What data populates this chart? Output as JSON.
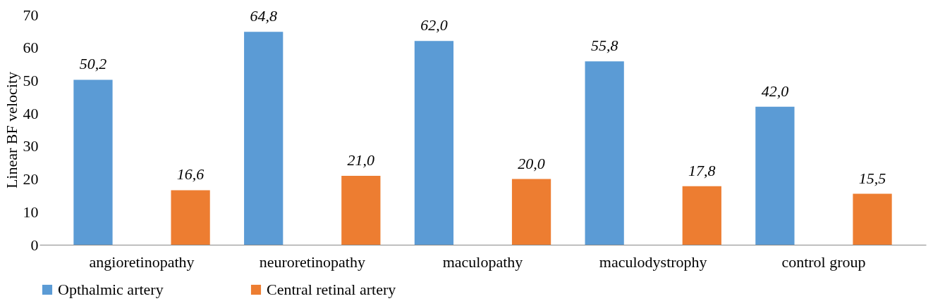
{
  "chart_data": {
    "type": "bar",
    "ylabel": "Linear BF velocity",
    "categories": [
      "angioretinopathy",
      "neuroretinopathy",
      "maculopathy",
      "maculodystrophy",
      "control group"
    ],
    "series": [
      {
        "name": "Opthalmic artery",
        "color": "#5b9bd5",
        "values": [
          50.2,
          64.8,
          62.0,
          55.8,
          42.0
        ],
        "value_labels": [
          "50,2",
          "64,8",
          "62,0",
          "55,8",
          "42,0"
        ]
      },
      {
        "name": "Central retinal artery",
        "color": "#ed7d31",
        "values": [
          16.6,
          21.0,
          20.0,
          17.8,
          15.5
        ],
        "value_labels": [
          "16,6",
          "21,0",
          "20,0",
          "17,8",
          "15,5"
        ]
      }
    ],
    "ylim": [
      0,
      70
    ],
    "yticks": [
      0,
      10,
      20,
      30,
      40,
      50,
      60,
      70
    ],
    "grid": false,
    "legend": "bottom"
  }
}
